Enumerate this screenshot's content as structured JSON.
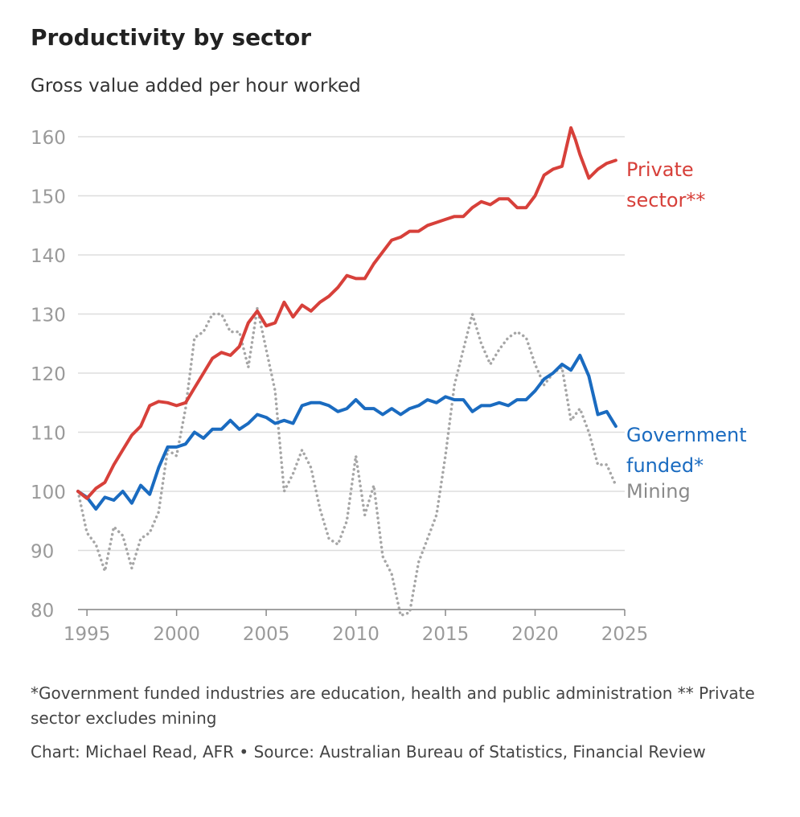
{
  "title": "Productivity by sector",
  "subtitle": "Gross value added per hour worked",
  "footnote": "*Government funded industries are education, health and public administration ** Private sector excludes mining",
  "credit": "Chart: Michael Read, AFR • Source: Australian Bureau of Statistics, Financial Review",
  "colors": {
    "private": "#d7403a",
    "government": "#1a6bc0",
    "mining": "#a6a6a6",
    "grid": "#dddddd",
    "axis_text": "#9a9a9a"
  },
  "chart_data": {
    "type": "line",
    "title": "Productivity by sector",
    "subtitle": "Gross value added per hour worked",
    "xlabel": "",
    "ylabel": "",
    "xlim": [
      1994.5,
      2025
    ],
    "ylim": [
      80,
      160
    ],
    "x_ticks": [
      1995,
      2000,
      2005,
      2010,
      2015,
      2020,
      2025
    ],
    "x_tick_labels": [
      "1995",
      "2000",
      "2005",
      "2010",
      "2015",
      "2020",
      "2025"
    ],
    "y_ticks": [
      80,
      90,
      100,
      110,
      120,
      130,
      140,
      150,
      160
    ],
    "y_tick_labels": [
      "80",
      "90",
      "100",
      "110",
      "120",
      "130",
      "140",
      "150",
      "160"
    ],
    "grid": true,
    "series": [
      {
        "name": "Private sector**",
        "label_lines": [
          "Private",
          "sector**"
        ],
        "color": "#d7403a",
        "style": "solid",
        "x": [
          1994.5,
          1995,
          1995.5,
          1996,
          1996.5,
          1997,
          1997.5,
          1998,
          1998.5,
          1999,
          1999.5,
          2000,
          2000.5,
          2001,
          2001.5,
          2002,
          2002.5,
          2003,
          2003.5,
          2004,
          2004.5,
          2005,
          2005.5,
          2006,
          2006.5,
          2007,
          2007.5,
          2008,
          2008.5,
          2009,
          2009.5,
          2010,
          2010.5,
          2011,
          2011.5,
          2012,
          2012.5,
          2013,
          2013.5,
          2014,
          2014.5,
          2015,
          2015.5,
          2016,
          2016.5,
          2017,
          2017.5,
          2018,
          2018.5,
          2019,
          2019.5,
          2020,
          2020.5,
          2021,
          2021.5,
          2022,
          2022.25,
          2022.5,
          2023,
          2023.5,
          2024,
          2024.5
        ],
        "y": [
          100,
          98.8,
          100.5,
          101.5,
          104.5,
          107,
          109.5,
          111,
          114.5,
          115.2,
          115,
          114.5,
          115,
          117.5,
          120,
          122.5,
          123.5,
          123,
          124.5,
          128.5,
          130.5,
          128,
          128.5,
          132,
          129.5,
          131.5,
          130.5,
          132,
          133,
          134.5,
          136.5,
          136,
          136,
          138.5,
          140.5,
          142.5,
          143,
          144,
          144,
          145,
          145.5,
          146,
          146.5,
          146.5,
          148,
          149,
          148.5,
          149.5,
          149.5,
          148,
          148,
          150,
          153.5,
          154.5,
          155,
          161.5,
          159.5,
          157,
          153,
          154.5,
          155.5,
          156
        ]
      },
      {
        "name": "Government funded*",
        "label_lines": [
          "Government",
          "funded*"
        ],
        "color": "#1a6bc0",
        "style": "solid",
        "x": [
          1994.5,
          1995,
          1995.5,
          1996,
          1996.5,
          1997,
          1997.5,
          1998,
          1998.5,
          1999,
          1999.5,
          2000,
          2000.5,
          2001,
          2001.5,
          2002,
          2002.5,
          2003,
          2003.5,
          2004,
          2004.5,
          2005,
          2005.5,
          2006,
          2006.5,
          2007,
          2007.5,
          2008,
          2008.5,
          2009,
          2009.5,
          2010,
          2010.5,
          2011,
          2011.5,
          2012,
          2012.5,
          2013,
          2013.5,
          2014,
          2014.5,
          2015,
          2015.5,
          2016,
          2016.5,
          2017,
          2017.5,
          2018,
          2018.5,
          2019,
          2019.5,
          2020,
          2020.5,
          2021,
          2021.5,
          2022,
          2022.5,
          2023,
          2023.5,
          2024,
          2024.5
        ],
        "y": [
          100,
          99,
          97,
          99,
          98.5,
          100,
          98,
          101,
          99.5,
          104,
          107.5,
          107.5,
          108,
          110,
          109,
          110.5,
          110.5,
          112,
          110.5,
          111.5,
          113,
          112.5,
          111.5,
          112,
          111.5,
          114.5,
          115,
          115,
          114.5,
          113.5,
          114,
          115.5,
          114,
          114,
          113,
          114,
          113,
          114,
          114.5,
          115.5,
          115,
          116,
          115.5,
          115.5,
          113.5,
          114.5,
          114.5,
          115,
          114.5,
          115.5,
          115.5,
          117,
          119,
          120,
          121.5,
          120.5,
          123,
          119.5,
          113,
          113.5,
          111
        ]
      },
      {
        "name": "Mining",
        "label_lines": [
          "Mining"
        ],
        "color": "#a6a6a6",
        "style": "dotted",
        "x": [
          1994.5,
          1995,
          1995.5,
          1996,
          1996.5,
          1997,
          1997.5,
          1998,
          1998.5,
          1999,
          1999.5,
          2000,
          2000.5,
          2001,
          2001.5,
          2002,
          2002.5,
          2003,
          2003.5,
          2004,
          2004.5,
          2005,
          2005.5,
          2006,
          2006.5,
          2007,
          2007.5,
          2008,
          2008.5,
          2009,
          2009.5,
          2010,
          2010.5,
          2011,
          2011.5,
          2012,
          2012.5,
          2013,
          2013.5,
          2014,
          2014.5,
          2015,
          2015.5,
          2016,
          2016.5,
          2017,
          2017.5,
          2018,
          2018.5,
          2019,
          2019.5,
          2020,
          2020.5,
          2021,
          2021.5,
          2022,
          2022.5,
          2023,
          2023.5,
          2024,
          2024.5
        ],
        "y": [
          100,
          93,
          91,
          86.5,
          94,
          92.5,
          87,
          92,
          93,
          96.5,
          107,
          106,
          114,
          126,
          127,
          130,
          130,
          127,
          127,
          121,
          131,
          124,
          117,
          100,
          103,
          107,
          104,
          97,
          92,
          91,
          95,
          106,
          96,
          101,
          89,
          86,
          79,
          79.5,
          88,
          92,
          96,
          106,
          118,
          124,
          130,
          125,
          121.5,
          124,
          126,
          127,
          126,
          121.5,
          118,
          120,
          121,
          112,
          114,
          110,
          104.5,
          104.5,
          101
        ]
      }
    ]
  }
}
